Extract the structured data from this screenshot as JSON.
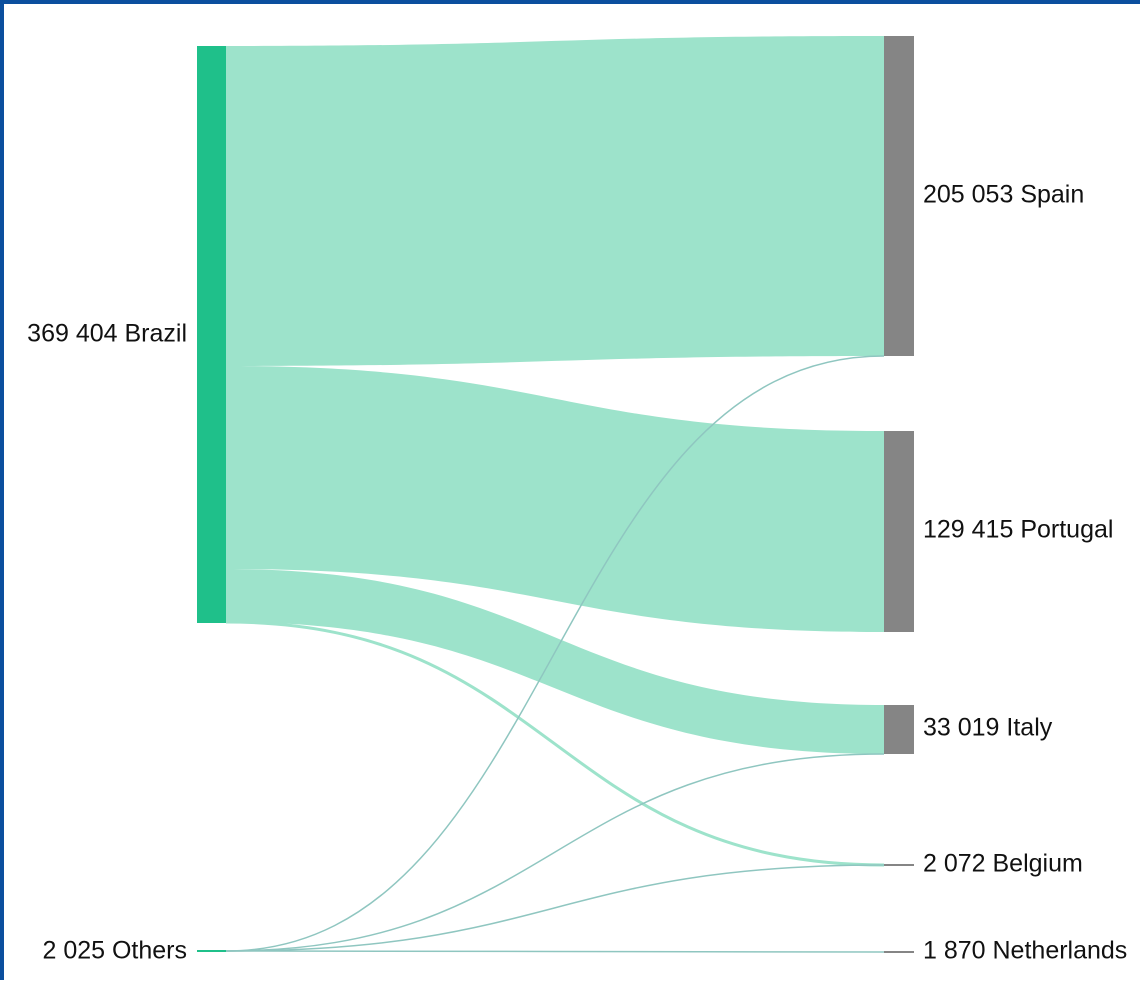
{
  "diagram": {
    "type": "sankey",
    "colors": {
      "source_node": "#1fc08a",
      "target_node": "#858585",
      "brazil_link": "#9de3cb",
      "others_link": "#8fc6c0",
      "border": "#0b4f9e"
    },
    "nodes": [
      {
        "id": "brazil",
        "value": "369 404",
        "name": "Brazil",
        "side": "source",
        "label": "369 404 Brazil"
      },
      {
        "id": "others",
        "value": "2 025",
        "name": "Others",
        "side": "source",
        "label": "2 025 Others"
      },
      {
        "id": "spain",
        "value": "205 053",
        "name": "Spain",
        "side": "target",
        "label": "205 053 Spain"
      },
      {
        "id": "portugal",
        "value": "129 415",
        "name": "Portugal",
        "side": "target",
        "label": "129 415 Portugal"
      },
      {
        "id": "italy",
        "value": "33 019",
        "name": "Italy",
        "side": "target",
        "label": "33 019 Italy"
      },
      {
        "id": "belgium",
        "value": "2 072",
        "name": "Belgium",
        "side": "target",
        "label": "2 072 Belgium"
      },
      {
        "id": "netherlands",
        "value": "1 870",
        "name": "Netherlands",
        "side": "target",
        "label": "1 870 Netherlands"
      }
    ],
    "links": [
      {
        "source": "brazil",
        "target": "spain"
      },
      {
        "source": "brazil",
        "target": "portugal"
      },
      {
        "source": "brazil",
        "target": "italy"
      },
      {
        "source": "brazil",
        "target": "belgium"
      },
      {
        "source": "others",
        "target": "spain"
      },
      {
        "source": "others",
        "target": "italy"
      },
      {
        "source": "others",
        "target": "belgium"
      },
      {
        "source": "others",
        "target": "netherlands"
      }
    ]
  }
}
